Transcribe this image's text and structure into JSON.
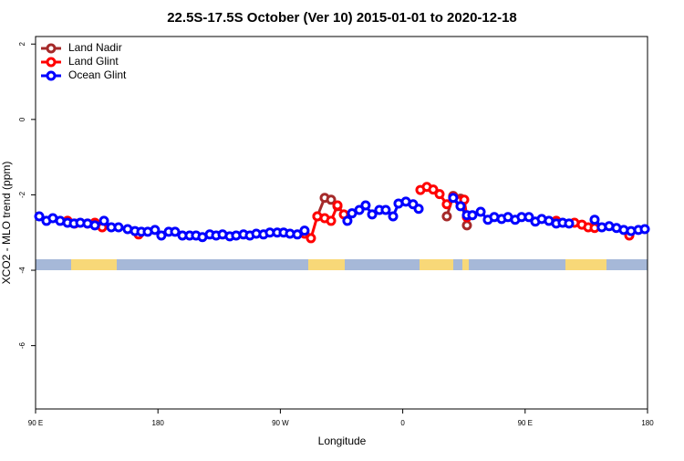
{
  "chart_data": {
    "type": "line",
    "title": "22.5S-17.5S October (Ver 10)   2015-01-01 to 2020-12-18",
    "x_label": "Longitude",
    "y_label": "XCO2 - MLO trend (ppm)",
    "xlim": [
      90,
      540
    ],
    "ylim": [
      -7.68,
      2.2
    ],
    "xticks": [
      {
        "value": 90,
        "label": "90 E"
      },
      {
        "value": 180,
        "label": "180"
      },
      {
        "value": 270,
        "label": "90 W"
      },
      {
        "value": 360,
        "label": "0"
      },
      {
        "value": 450,
        "label": "90 E"
      },
      {
        "value": 540,
        "label": "180"
      }
    ],
    "yticks": [
      2,
      0,
      -2,
      -4,
      -6
    ],
    "legend": "top-left",
    "series": [
      {
        "name": "Land Nadir",
        "color": "#a52a2a",
        "x": [
          297.2,
          302.6,
          307.3,
          312.0,
          null,
          392.4,
          397.1,
          402.5,
          407.2
        ],
        "values": [
          -2.57,
          -2.08,
          -2.13,
          -2.3,
          null,
          -2.57,
          -2.03,
          -2.1,
          -2.81
        ]
      },
      {
        "name": "Land Glint",
        "color": "#ff0000",
        "x": [
          113.5,
          118.8,
          128.2,
          133.6,
          139.0,
          null,
          165.8,
          null,
          287.8,
          292.5,
          297.2,
          302.6,
          307.3,
          312.0,
          316.7,
          null,
          373.0,
          377.7,
          382.4,
          387.1,
          392.4,
          397.1,
          401.8,
          405.2,
          407.2,
          null,
          472.9,
          null,
          486.3,
          491.7,
          496.4,
          501.1,
          null,
          526.6
        ],
        "values": [
          -2.69,
          -2.76,
          -2.76,
          -2.74,
          -2.86,
          null,
          -3.05,
          null,
          -3.03,
          -3.15,
          -2.57,
          -2.62,
          -2.69,
          -2.28,
          -2.52,
          null,
          -1.87,
          -1.79,
          -1.86,
          -1.98,
          -2.25,
          -2.06,
          -2.16,
          -2.13,
          -2.59,
          null,
          -2.69,
          null,
          -2.74,
          -2.79,
          -2.86,
          -2.88,
          null,
          -3.08
        ]
      },
      {
        "name": "Ocean Glint",
        "color": "#0000ff",
        "x": [
          92.7,
          98.0,
          102.7,
          108.1,
          113.5,
          118.2,
          122.9,
          128.2,
          133.6,
          140.3,
          145.7,
          151.0,
          157.7,
          163.1,
          167.8,
          172.5,
          177.8,
          182.5,
          187.9,
          192.6,
          198.0,
          203.3,
          208.0,
          212.7,
          218.1,
          222.8,
          227.5,
          232.8,
          237.5,
          242.9,
          247.6,
          252.3,
          257.6,
          262.3,
          267.7,
          272.4,
          277.1,
          282.5,
          287.8,
          null,
          319.3,
          322.7,
          328.1,
          332.7,
          337.5,
          342.8,
          347.5,
          352.9,
          356.9,
          362.3,
          367.6,
          371.7,
          null,
          397.1,
          402.5,
          407.2,
          411.2,
          417.3,
          422.6,
          427.3,
          432.7,
          437.4,
          442.7,
          447.4,
          452.8,
          457.5,
          462.2,
          467.5,
          472.9,
          477.6,
          482.3,
          null,
          501.1,
          506.4,
          511.8,
          517.2,
          522.5,
          527.9,
          533.3,
          538.0
        ],
        "values": [
          -2.57,
          -2.69,
          -2.62,
          -2.69,
          -2.74,
          -2.76,
          -2.74,
          -2.76,
          -2.81,
          -2.69,
          -2.86,
          -2.86,
          -2.91,
          -2.96,
          -2.98,
          -2.98,
          -2.93,
          -3.08,
          -2.98,
          -2.98,
          -3.08,
          -3.08,
          -3.08,
          -3.12,
          -3.05,
          -3.08,
          -3.05,
          -3.1,
          -3.08,
          -3.05,
          -3.08,
          -3.03,
          -3.05,
          -3.0,
          -3.0,
          -3.0,
          -3.03,
          -3.05,
          -2.95,
          null,
          -2.69,
          -2.49,
          -2.4,
          -2.28,
          -2.52,
          -2.4,
          -2.4,
          -2.57,
          -2.23,
          -2.18,
          -2.25,
          -2.37,
          null,
          -2.08,
          -2.3,
          -2.54,
          -2.54,
          -2.45,
          -2.66,
          -2.59,
          -2.64,
          -2.59,
          -2.66,
          -2.59,
          -2.59,
          -2.71,
          -2.64,
          -2.69,
          -2.76,
          -2.74,
          -2.76,
          null,
          -2.66,
          -2.86,
          -2.83,
          -2.88,
          -2.93,
          -2.96,
          -2.93,
          -2.91
        ]
      }
    ]
  }
}
